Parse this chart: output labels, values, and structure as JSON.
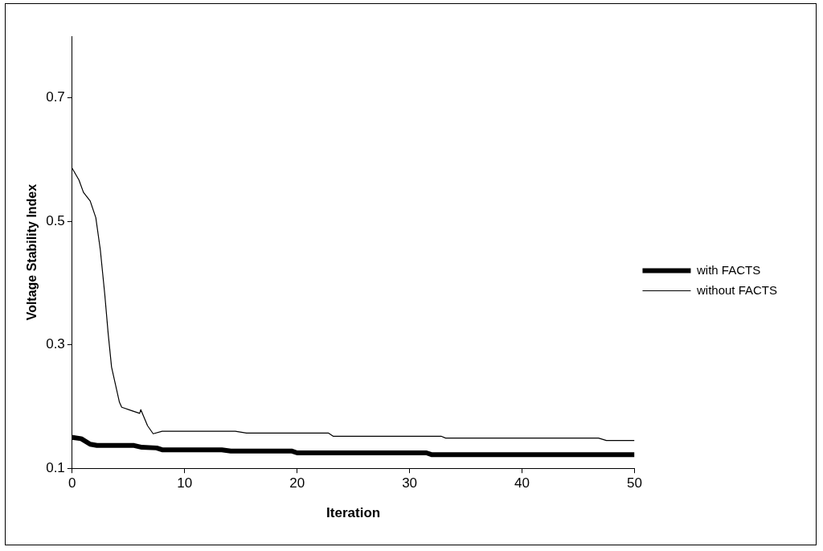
{
  "chart_data": {
    "type": "line",
    "xlabel": "Iteration",
    "ylabel": "Voltage Stability Index",
    "xlim": [
      0,
      50
    ],
    "xticks": [
      0,
      10,
      20,
      30,
      40,
      50
    ],
    "ylim": [
      0.1,
      0.8
    ],
    "yticks": [
      0.1,
      0.3,
      0.5,
      0.7
    ],
    "grid": false,
    "legend": "right",
    "marker": "none",
    "line_style": "solid",
    "series": [
      {
        "name": "with FACTS",
        "color": "#000000",
        "x": [
          0,
          0.8,
          1.6,
          2.2,
          5.5,
          6.2,
          7.5,
          8,
          13.3,
          14.1,
          19.5,
          20,
          31.5,
          32,
          50
        ],
        "values": [
          0.15,
          0.148,
          0.139,
          0.137,
          0.137,
          0.134,
          0.133,
          0.13,
          0.13,
          0.128,
          0.128,
          0.125,
          0.125,
          0.122,
          0.122
        ]
      },
      {
        "name": "without FACTS",
        "color": "#000000",
        "x": [
          0,
          0.6,
          1,
          1.6,
          2.1,
          2.5,
          2.9,
          3.2,
          3.5,
          4.2,
          4.4,
          5.2,
          6,
          6.1,
          6.7,
          7.2,
          8,
          14.5,
          15.5,
          22.8,
          23.2,
          32.8,
          33.2,
          46.8,
          47.5,
          50
        ],
        "values": [
          0.586,
          0.567,
          0.547,
          0.533,
          0.506,
          0.454,
          0.381,
          0.318,
          0.264,
          0.207,
          0.199,
          0.194,
          0.189,
          0.195,
          0.169,
          0.156,
          0.16,
          0.16,
          0.157,
          0.157,
          0.152,
          0.152,
          0.149,
          0.149,
          0.145,
          0.145
        ]
      }
    ]
  }
}
